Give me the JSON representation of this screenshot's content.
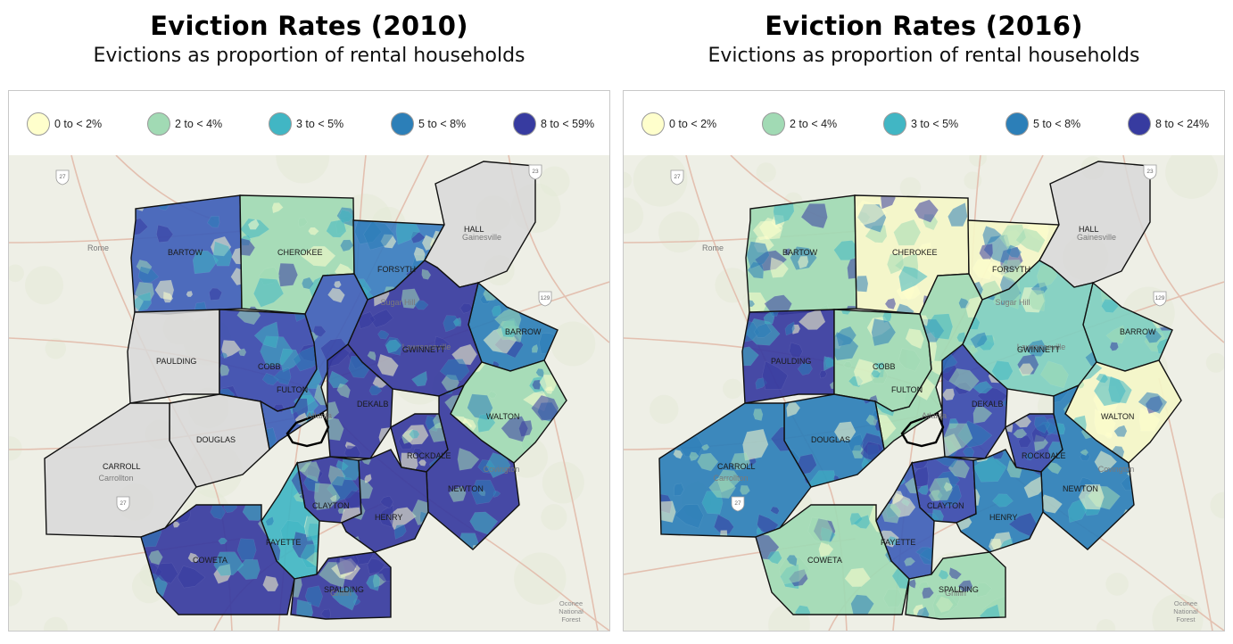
{
  "panels": [
    {
      "title": "Eviction Rates (2010)",
      "subtitle": "Evictions as proportion of rental households",
      "legend": [
        {
          "label": "0 to < 2%",
          "color": "#ffffcc"
        },
        {
          "label": "2 to < 4%",
          "color": "#a1dab4"
        },
        {
          "label": "3 to < 5%",
          "color": "#41b6c4"
        },
        {
          "label": "5 to < 8%",
          "color": "#2c7fb8"
        },
        {
          "label": "8 to < 59%",
          "color": "#373ba0"
        }
      ],
      "counties": [
        {
          "name": "BARTOW",
          "color": "#3f5fb8"
        },
        {
          "name": "CHEROKEE",
          "color": "#a1dab4"
        },
        {
          "name": "FORSYTH",
          "color": "#3a7dc0"
        },
        {
          "name": "HALL",
          "color": "#d8d8d8"
        },
        {
          "name": "BARROW",
          "color": "#2c7fb8"
        },
        {
          "name": "PAULDING",
          "color": "#d8d8d8"
        },
        {
          "name": "COBB",
          "color": "#3a4aae"
        },
        {
          "name": "GWINNETT",
          "color": "#373ba0"
        },
        {
          "name": "FULTON",
          "color": "#3f5fb8"
        },
        {
          "name": "DEKALB",
          "color": "#373ba0"
        },
        {
          "name": "WALTON",
          "color": "#a1dab4"
        },
        {
          "name": "DOUGLAS",
          "color": "#d8d8d8"
        },
        {
          "name": "CARROLL",
          "color": "#d8d8d8"
        },
        {
          "name": "ROCKDALE",
          "color": "#373ba0"
        },
        {
          "name": "NEWTON",
          "color": "#373ba0"
        },
        {
          "name": "CLAYTON",
          "color": "#373ba0"
        },
        {
          "name": "HENRY",
          "color": "#373ba0"
        },
        {
          "name": "FAYETTE",
          "color": "#41b6c4"
        },
        {
          "name": "COWETA",
          "color": "#373ba0"
        },
        {
          "name": "SPALDING",
          "color": "#373ba0"
        }
      ]
    },
    {
      "title": "Eviction Rates (2016)",
      "subtitle": "Evictions as proportion of rental households",
      "legend": [
        {
          "label": "0 to < 2%",
          "color": "#ffffcc"
        },
        {
          "label": "2 to < 4%",
          "color": "#a1dab4"
        },
        {
          "label": "3 to < 5%",
          "color": "#41b6c4"
        },
        {
          "label": "5 to < 8%",
          "color": "#2c7fb8"
        },
        {
          "label": "8 to < 24%",
          "color": "#373ba0"
        }
      ],
      "counties": [
        {
          "name": "BARTOW",
          "color": "#a1dab4"
        },
        {
          "name": "CHEROKEE",
          "color": "#f4f6c8"
        },
        {
          "name": "FORSYTH",
          "color": "#f4f6c8"
        },
        {
          "name": "HALL",
          "color": "#d8d8d8"
        },
        {
          "name": "BARROW",
          "color": "#7fcfc0"
        },
        {
          "name": "PAULDING",
          "color": "#373ba0"
        },
        {
          "name": "COBB",
          "color": "#a1dab4"
        },
        {
          "name": "GWINNETT",
          "color": "#7fcfc0"
        },
        {
          "name": "FULTON",
          "color": "#a1dab4"
        },
        {
          "name": "DEKALB",
          "color": "#3a4aae"
        },
        {
          "name": "WALTON",
          "color": "#f4f6c8"
        },
        {
          "name": "DOUGLAS",
          "color": "#2c7fb8"
        },
        {
          "name": "CARROLL",
          "color": "#2c7fb8"
        },
        {
          "name": "ROCKDALE",
          "color": "#3a4aae"
        },
        {
          "name": "NEWTON",
          "color": "#2c7fb8"
        },
        {
          "name": "CLAYTON",
          "color": "#3a4aae"
        },
        {
          "name": "HENRY",
          "color": "#2c7fb8"
        },
        {
          "name": "FAYETTE",
          "color": "#3f5fb8"
        },
        {
          "name": "COWETA",
          "color": "#a1dab4"
        },
        {
          "name": "SPALDING",
          "color": "#a1dab4"
        }
      ]
    }
  ],
  "basemap": {
    "places": [
      "Rome",
      "Gainesville",
      "Atlanta",
      "Carrollton",
      "Covington",
      "Sugar Hill",
      "Lawrenceville",
      "Griffin"
    ],
    "forest_label_lines": [
      "Oconee",
      "National",
      "Forest"
    ],
    "highway_shields": [
      "27",
      "23",
      "129",
      "27"
    ],
    "colors": {
      "land": "#eeefe6",
      "road": "#e3c0b0",
      "other_county": "#d8d8d8",
      "border": "#111111"
    }
  }
}
